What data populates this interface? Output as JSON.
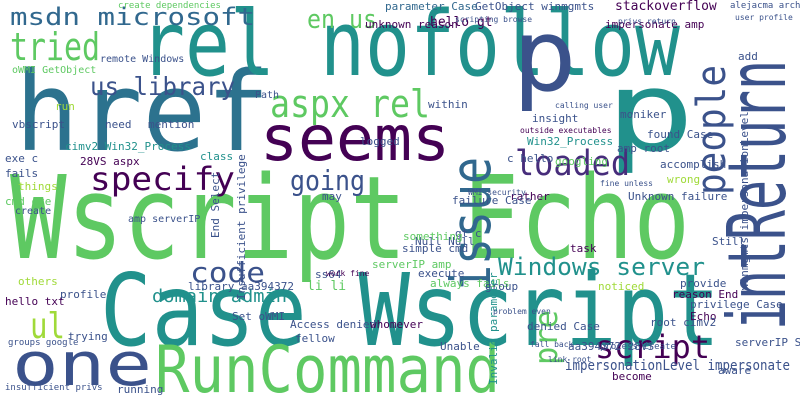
{
  "words": [
    "Wscript Echo",
    "Case Wscript",
    "href",
    "rel nofollow",
    "RunCommand",
    "seems",
    "p",
    "p",
    "intReturn",
    "one",
    "issue",
    "people",
    "loaded",
    "Windows server",
    "script",
    "specify",
    "going",
    "code",
    "aspx rel",
    "msdn microsoft",
    "tried",
    "us library",
    "en us",
    "ul",
    "pre",
    "domain admin",
    "impersonationLevel impersonate",
    "create dependencies",
    "remote Windows",
    "oWMI GetObject",
    "vbscript",
    "exe c",
    "fails",
    "things",
    "cmd exe",
    "create",
    "run",
    "need",
    "mention",
    "cimv2 Win32_Process",
    "28VS aspx",
    "amp serverIP",
    "Path",
    "logged",
    "unknown reason",
    "hello gt",
    "GetObject winmgmts",
    "parameter Case",
    "stackoverflow",
    "impersonate amp",
    "within",
    "insight",
    "moniker",
    "found Case",
    "amp root",
    "accomplish",
    "wrong",
    "googling",
    "rather",
    "c hello",
    "Win32_Process",
    "failure Case",
    "gt c",
    "Null Null",
    "Unknown failure",
    "task",
    "Still",
    "serverIP amp",
    "something",
    "simple cmd",
    "always fails",
    "execute",
    "group",
    "noticed",
    "provide",
    "reason End",
    "privilege Case",
    "Echo",
    "root cimv2",
    "denied Case",
    "aa394372 28VS",
    "become",
    "aware",
    "serverIP Set",
    "process create",
    "Access denied",
    "whomever",
    "Unable",
    "fellow",
    "Set oWMI",
    "library aa394372",
    "li li",
    "ss64",
    "profile",
    "others",
    "hello txt",
    "groups google",
    "trying",
    "running",
    "insufficient privs",
    "End Select",
    "Insufficient privilege",
    "Invalid parameter",
    "winmgmts impersonationLevel",
    "class",
    "may",
    "add",
    "alejacma archive",
    "user profile",
    "calling user",
    "outside executables",
    "scripting browse",
    "privs return",
    "WMI security",
    "fine unless",
    "work fine",
    "problem even",
    "fall back",
    "link root"
  ]
}
